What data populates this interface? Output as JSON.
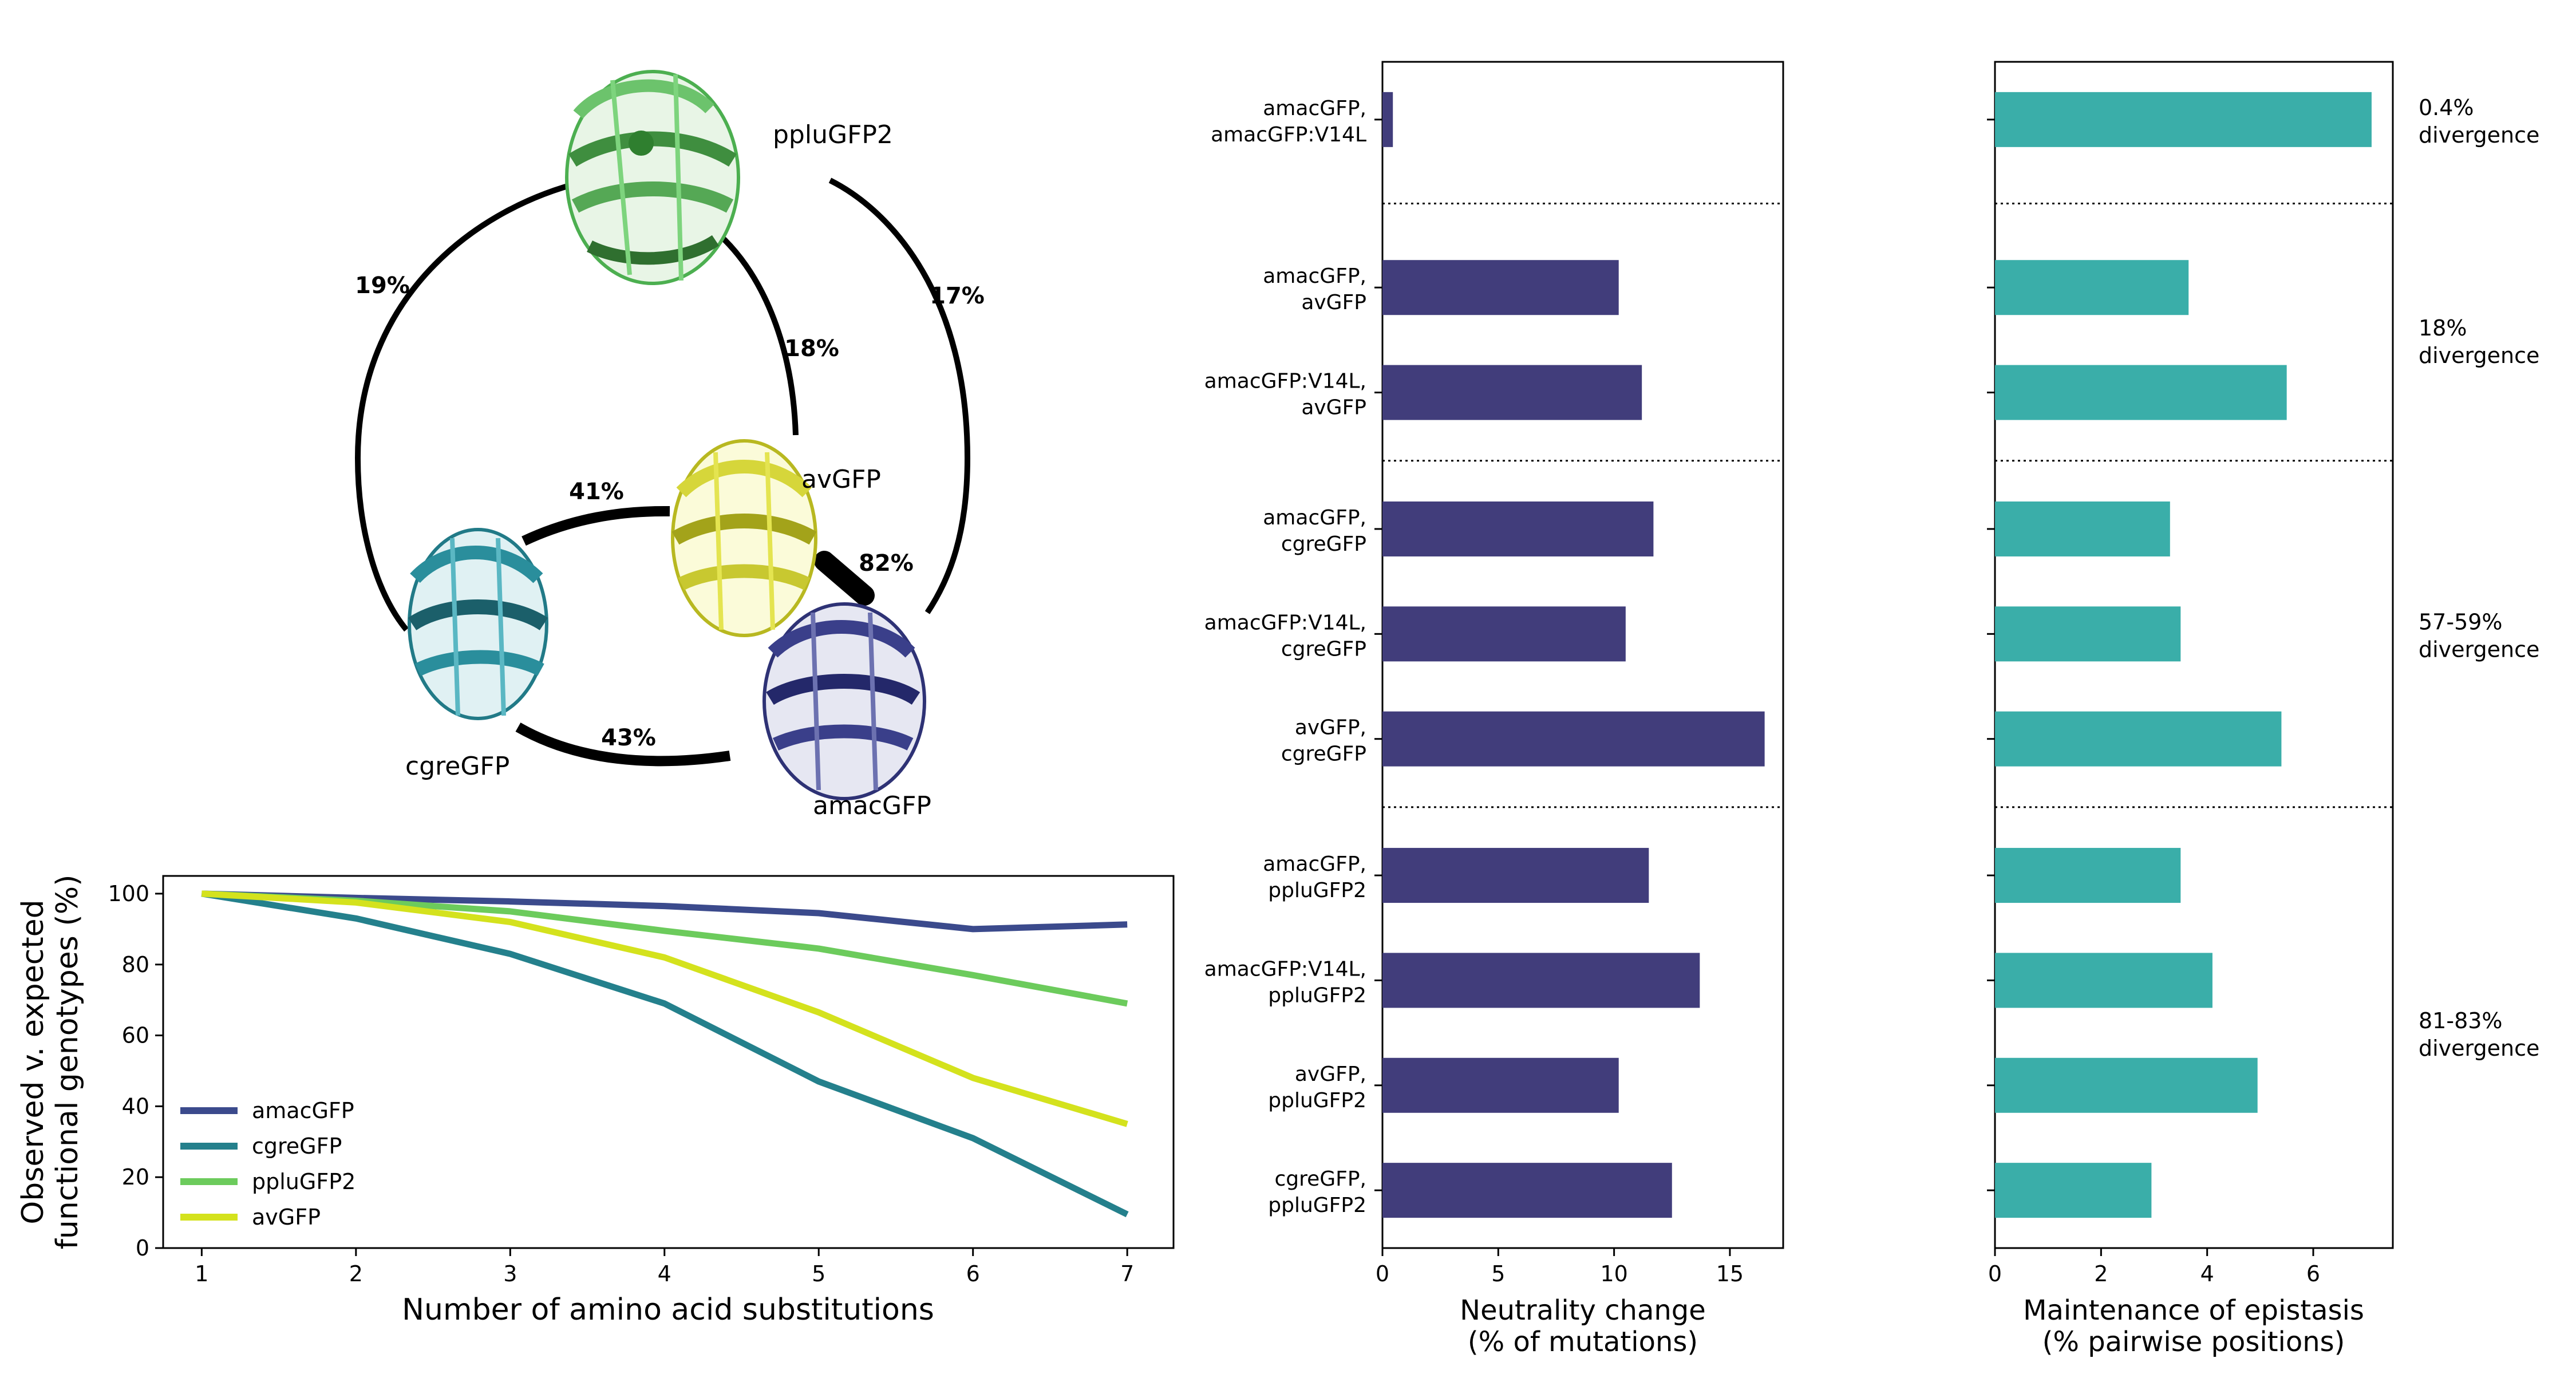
{
  "diagram": {
    "proteins": [
      {
        "key": "pplu",
        "label": "ppluGFP2",
        "color": "#5cb85c"
      },
      {
        "key": "av",
        "label": "avGFP",
        "color": "#cccc33"
      },
      {
        "key": "cgre",
        "label": "cgreGFP",
        "color": "#2a7f8f"
      },
      {
        "key": "amac",
        "label": "amacGFP",
        "color": "#3a3f8a"
      }
    ],
    "divergences": {
      "pplu_cgre": "19%",
      "pplu_amac": "17%",
      "pplu_av": "18%",
      "av_cgre": "41%",
      "av_amac": "82%",
      "cgre_amac": "43%"
    }
  },
  "chart_data": [
    {
      "type": "line",
      "xlabel": "Number of amino acid substitutions",
      "ylabel_lines": [
        "Observed v. expected",
        "functional genotypes (%)"
      ],
      "x": [
        1,
        2,
        3,
        4,
        5,
        6,
        7
      ],
      "xlim": [
        0.75,
        7.3
      ],
      "ylim": [
        0,
        105
      ],
      "xticks": [
        1,
        2,
        3,
        4,
        5,
        6,
        7
      ],
      "yticks": [
        0,
        20,
        40,
        60,
        80,
        100
      ],
      "legend_position": "lower-left",
      "series": [
        {
          "name": "amacGFP",
          "color": "#3b4a8c",
          "values": [
            100,
            98.8,
            97.8,
            96.5,
            94.5,
            90,
            91.3
          ]
        },
        {
          "name": "cgreGFP",
          "color": "#24808c",
          "values": [
            100,
            93,
            83,
            69,
            47,
            31,
            9.5
          ]
        },
        {
          "name": "ppluGFP2",
          "color": "#6ccb5c",
          "values": [
            100,
            98,
            95,
            89.5,
            84.5,
            77,
            69
          ]
        },
        {
          "name": "avGFP",
          "color": "#d4e21d",
          "values": [
            100,
            97.5,
            92,
            82,
            66.5,
            48,
            35
          ]
        }
      ]
    },
    {
      "type": "bar",
      "orientation": "horizontal",
      "color": "#413d7b",
      "xlabel_lines": [
        "Neutrality change",
        "(% of mutations)"
      ],
      "xlim": [
        0,
        17.3
      ],
      "xticks": [
        0,
        5,
        10,
        15
      ],
      "categories": [
        [
          "amacGFP,",
          "amacGFP:V14L"
        ],
        [
          "amacGFP,",
          "avGFP"
        ],
        [
          "amacGFP:V14L,",
          "avGFP"
        ],
        [
          "amacGFP,",
          "cgreGFP"
        ],
        [
          "amacGFP:V14L,",
          "cgreGFP"
        ],
        [
          "avGFP,",
          "cgreGFP"
        ],
        [
          "amacGFP,",
          "ppluGFP2"
        ],
        [
          "amacGFP:V14L,",
          "ppluGFP2"
        ],
        [
          "avGFP,",
          "ppluGFP2"
        ],
        [
          "cgreGFP,",
          "ppluGFP2"
        ]
      ],
      "values": [
        0.45,
        10.2,
        11.2,
        11.7,
        10.5,
        16.5,
        11.5,
        13.7,
        10.2,
        12.5
      ]
    },
    {
      "type": "bar",
      "orientation": "horizontal",
      "color": "#3aaea9",
      "xlabel_lines": [
        "Maintenance of epistasis",
        "(% pairwise positions)"
      ],
      "xlim": [
        0,
        7.5
      ],
      "xticks": [
        0,
        2,
        4,
        6
      ],
      "values": [
        7.1,
        3.65,
        5.5,
        3.3,
        3.5,
        5.4,
        3.5,
        4.1,
        4.95,
        2.95
      ],
      "group_labels": [
        [
          "0.4%",
          "divergence"
        ],
        [
          "18%",
          "divergence"
        ],
        [
          "57-59%",
          "divergence"
        ],
        [
          "81-83%",
          "divergence"
        ]
      ]
    }
  ]
}
